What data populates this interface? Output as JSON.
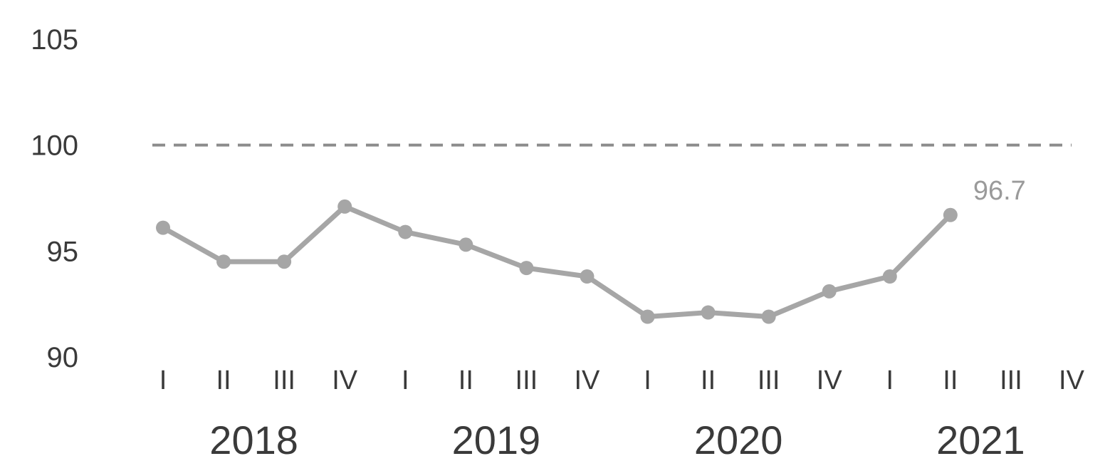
{
  "chart_data": {
    "type": "line",
    "title": "",
    "xlabel": "",
    "ylabel": "",
    "ylim": [
      90,
      105
    ],
    "y_ticks": [
      90,
      95,
      100,
      105
    ],
    "grid": false,
    "years": [
      "2018",
      "2019",
      "2020",
      "2021"
    ],
    "quarter_labels": [
      "I",
      "II",
      "III",
      "IV"
    ],
    "x": [
      "2018 I",
      "2018 II",
      "2018 III",
      "2018 IV",
      "2019 I",
      "2019 II",
      "2019 III",
      "2019 IV",
      "2020 I",
      "2020 II",
      "2020 III",
      "2020 IV",
      "2021 I",
      "2021 II",
      "2021 III",
      "2021 IV"
    ],
    "series": [
      {
        "color": "#a6a6a6",
        "values": [
          96.1,
          94.5,
          94.5,
          97.1,
          95.9,
          95.3,
          94.2,
          93.8,
          91.9,
          92.1,
          91.9,
          93.1,
          93.8,
          96.7,
          null,
          null
        ]
      }
    ],
    "reference_line": {
      "value": 100,
      "style": "dashed",
      "color": "#8c8c8c"
    },
    "annotations": [
      {
        "x": "2021 II",
        "text": "96.7"
      }
    ]
  }
}
